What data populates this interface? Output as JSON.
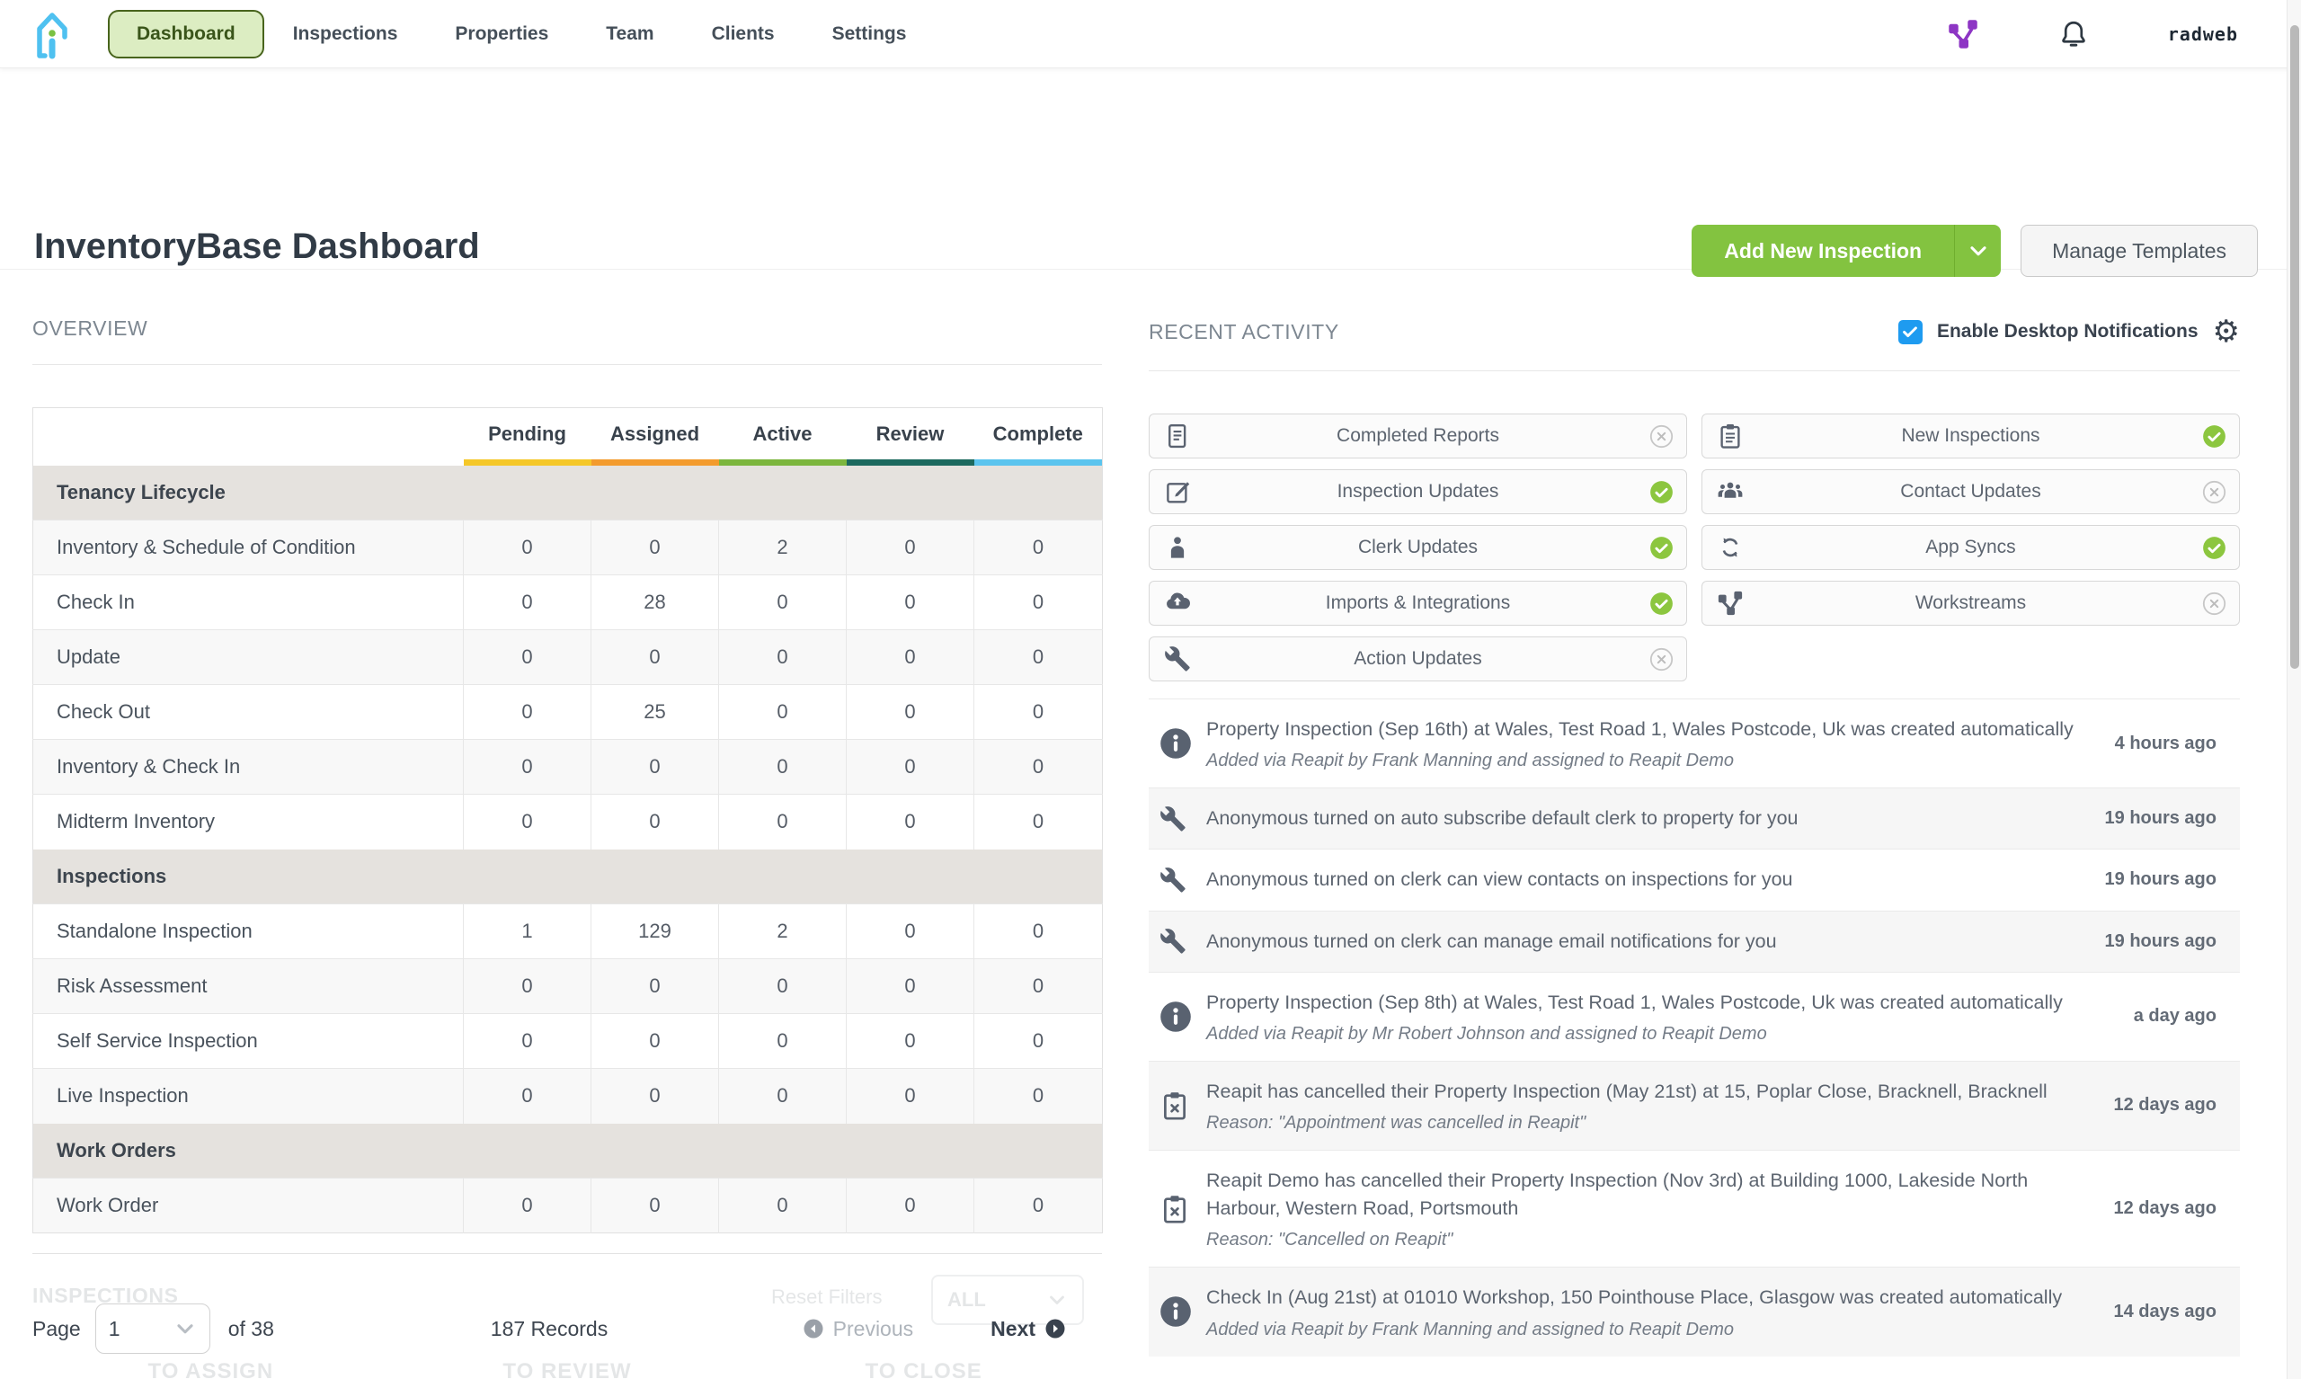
{
  "nav": {
    "items": [
      {
        "label": "Dashboard",
        "active": true
      },
      {
        "label": "Inspections",
        "active": false
      },
      {
        "label": "Properties",
        "active": false
      },
      {
        "label": "Team",
        "active": false
      },
      {
        "label": "Clients",
        "active": false
      },
      {
        "label": "Settings",
        "active": false
      }
    ],
    "account_label": "radweb"
  },
  "header": {
    "title": "InventoryBase Dashboard",
    "add_button_label": "Add New Inspection",
    "manage_button_label": "Manage Templates"
  },
  "overview": {
    "heading": "OVERVIEW",
    "columns": [
      {
        "label": "Pending",
        "color": "#f5c728"
      },
      {
        "label": "Assigned",
        "color": "#f39b2d"
      },
      {
        "label": "Active",
        "color": "#7cb63d"
      },
      {
        "label": "Review",
        "color": "#1c695e"
      },
      {
        "label": "Complete",
        "color": "#5bc4ee"
      }
    ],
    "sections": [
      {
        "title": "Tenancy Lifecycle",
        "rows": [
          {
            "label": "Inventory & Schedule of Condition",
            "values": [
              "0",
              "0",
              "2",
              "0",
              "0"
            ]
          },
          {
            "label": "Check In",
            "values": [
              "0",
              "28",
              "0",
              "0",
              "0"
            ]
          },
          {
            "label": "Update",
            "values": [
              "0",
              "0",
              "0",
              "0",
              "0"
            ]
          },
          {
            "label": "Check Out",
            "values": [
              "0",
              "25",
              "0",
              "0",
              "0"
            ]
          },
          {
            "label": "Inventory & Check In",
            "values": [
              "0",
              "0",
              "0",
              "0",
              "0"
            ]
          },
          {
            "label": "Midterm Inventory",
            "values": [
              "0",
              "0",
              "0",
              "0",
              "0"
            ]
          }
        ]
      },
      {
        "title": "Inspections",
        "rows": [
          {
            "label": "Standalone Inspection",
            "values": [
              "1",
              "129",
              "2",
              "0",
              "0"
            ]
          },
          {
            "label": "Risk Assessment",
            "values": [
              "0",
              "0",
              "0",
              "0",
              "0"
            ]
          },
          {
            "label": "Self Service Inspection",
            "values": [
              "0",
              "0",
              "0",
              "0",
              "0"
            ]
          },
          {
            "label": "Live Inspection",
            "values": [
              "0",
              "0",
              "0",
              "0",
              "0"
            ]
          }
        ]
      },
      {
        "title": "Work Orders",
        "rows": [
          {
            "label": "Work Order",
            "values": [
              "0",
              "0",
              "0",
              "0",
              "0"
            ]
          }
        ]
      }
    ]
  },
  "activity": {
    "heading": "RECENT ACTIVITY",
    "notifications_label": "Enable Desktop Notifications",
    "notifications_checked": true,
    "filters": [
      {
        "label": "Completed Reports",
        "icon": "document",
        "state": "off"
      },
      {
        "label": "New Inspections",
        "icon": "clipboard",
        "state": "on"
      },
      {
        "label": "Inspection Updates",
        "icon": "edit",
        "state": "on"
      },
      {
        "label": "Contact Updates",
        "icon": "people",
        "state": "off"
      },
      {
        "label": "Clerk Updates",
        "icon": "person",
        "state": "on"
      },
      {
        "label": "App Syncs",
        "icon": "sync",
        "state": "on"
      },
      {
        "label": "Imports & Integrations",
        "icon": "cloud",
        "state": "on"
      },
      {
        "label": "Workstreams",
        "icon": "workstream",
        "state": "off"
      },
      {
        "label": "Action Updates",
        "icon": "wrench",
        "state": "off"
      }
    ],
    "items": [
      {
        "icon": "info",
        "text": "Property Inspection (Sep 16th) at Wales, Test Road 1, Wales Postcode, Uk was created automatically",
        "subtext": "Added via Reapit by Frank Manning and assigned to Reapit Demo",
        "time": "4 hours ago"
      },
      {
        "icon": "wrench",
        "text": "Anonymous turned on auto subscribe default clerk to property for you",
        "subtext": "",
        "time": "19 hours ago"
      },
      {
        "icon": "wrench",
        "text": "Anonymous turned on clerk can view contacts on inspections for you",
        "subtext": "",
        "time": "19 hours ago"
      },
      {
        "icon": "wrench",
        "text": "Anonymous turned on clerk can manage email notifications for you",
        "subtext": "",
        "time": "19 hours ago"
      },
      {
        "icon": "info",
        "text": "Property Inspection (Sep 8th) at Wales, Test Road 1, Wales Postcode, Uk was created automatically",
        "subtext": "Added via Reapit by Mr Robert Johnson and assigned to Reapit Demo",
        "time": "a day ago"
      },
      {
        "icon": "clipboard-x",
        "text": "Reapit has cancelled their Property Inspection (May 21st) at 15, Poplar Close, Bracknell, Bracknell",
        "subtext": "Reason: \"Appointment was cancelled in Reapit\"",
        "time": "12 days ago"
      },
      {
        "icon": "clipboard-x",
        "text": "Reapit Demo has cancelled their Property Inspection (Nov 3rd) at Building 1000, Lakeside North Harbour, Western Road, Portsmouth",
        "subtext": "Reason: \"Cancelled on Reapit\"",
        "time": "12 days ago"
      },
      {
        "icon": "info",
        "text": "Check In (Aug 21st) at 01010 Workshop, 150 Pointhouse Place, Glasgow was created automatically",
        "subtext": "Added via Reapit by Frank Manning and assigned to Reapit Demo",
        "time": "14 days ago"
      }
    ]
  },
  "inspections_section": {
    "heading": "INSPECTIONS",
    "reset_filters_label": "Reset Filters",
    "all_label": "ALL",
    "kanban_columns": [
      "TO ASSIGN",
      "TO REVIEW",
      "TO CLOSE"
    ]
  },
  "pagination": {
    "page_label": "Page",
    "page_value": "1",
    "of_label": "of 38",
    "records": "187 Records",
    "previous_label": "Previous",
    "next_label": "Next"
  },
  "colors": {
    "accent_green": "#83c340",
    "pill_green_bg": "#dcedc2",
    "pill_green_border": "#48641c",
    "on_state_green": "#8cc63f",
    "checkbox_blue": "#1e9bf0",
    "brand_purple": "#8d35c4",
    "logo_blue": "#4fc1f0",
    "logo_green_dot": "#7ac143"
  }
}
